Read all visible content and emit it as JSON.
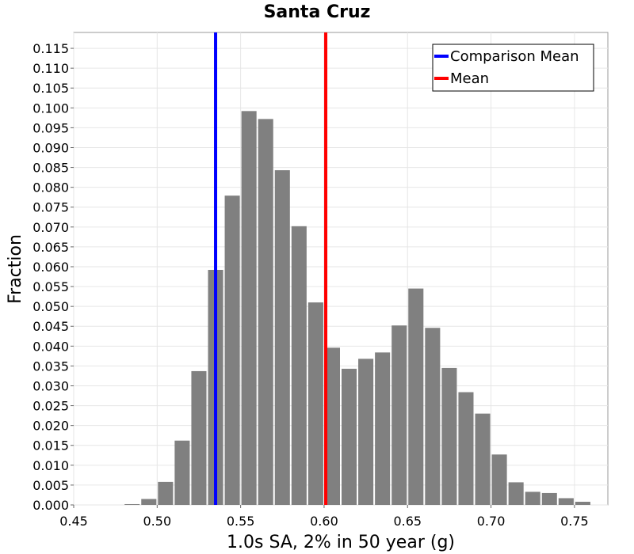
{
  "chart_data": {
    "type": "bar",
    "title": "Santa Cruz",
    "xlabel": "1.0s SA, 2% in 50 year (g)",
    "ylabel": "Fraction",
    "xlim": [
      0.45,
      0.77
    ],
    "ylim": [
      0,
      0.119
    ],
    "bin_width": 0.01,
    "x_ticks": [
      "0.45",
      "0.50",
      "0.55",
      "0.60",
      "0.65",
      "0.70",
      "0.75"
    ],
    "y_ticks": [
      "0.000",
      "0.005",
      "0.010",
      "0.015",
      "0.020",
      "0.025",
      "0.030",
      "0.035",
      "0.040",
      "0.045",
      "0.050",
      "0.055",
      "0.060",
      "0.065",
      "0.070",
      "0.075",
      "0.080",
      "0.085",
      "0.090",
      "0.095",
      "0.100",
      "0.105",
      "0.110",
      "0.115"
    ],
    "bin_centers": [
      0.455,
      0.465,
      0.475,
      0.485,
      0.495,
      0.505,
      0.515,
      0.525,
      0.535,
      0.545,
      0.555,
      0.565,
      0.575,
      0.585,
      0.595,
      0.605,
      0.615,
      0.625,
      0.635,
      0.645,
      0.655,
      0.665,
      0.675,
      0.685,
      0.695,
      0.705,
      0.715,
      0.725,
      0.735,
      0.745,
      0.755
    ],
    "values": [
      0.0,
      0.0,
      0.0,
      0.0002,
      0.0015,
      0.0058,
      0.0162,
      0.0337,
      0.0592,
      0.0779,
      0.0992,
      0.0972,
      0.0843,
      0.0702,
      0.051,
      0.0396,
      0.0343,
      0.0368,
      0.0384,
      0.0452,
      0.0545,
      0.0446,
      0.0345,
      0.0284,
      0.023,
      0.0127,
      0.0057,
      0.0033,
      0.003,
      0.0017,
      0.0008
    ],
    "bar_color": "#808080",
    "legend_position": "top-right",
    "reference_lines": [
      {
        "name": "Comparison Mean",
        "x": 0.535,
        "color": "#0000ff"
      },
      {
        "name": "Mean",
        "x": 0.601,
        "color": "#ff0000"
      }
    ]
  }
}
